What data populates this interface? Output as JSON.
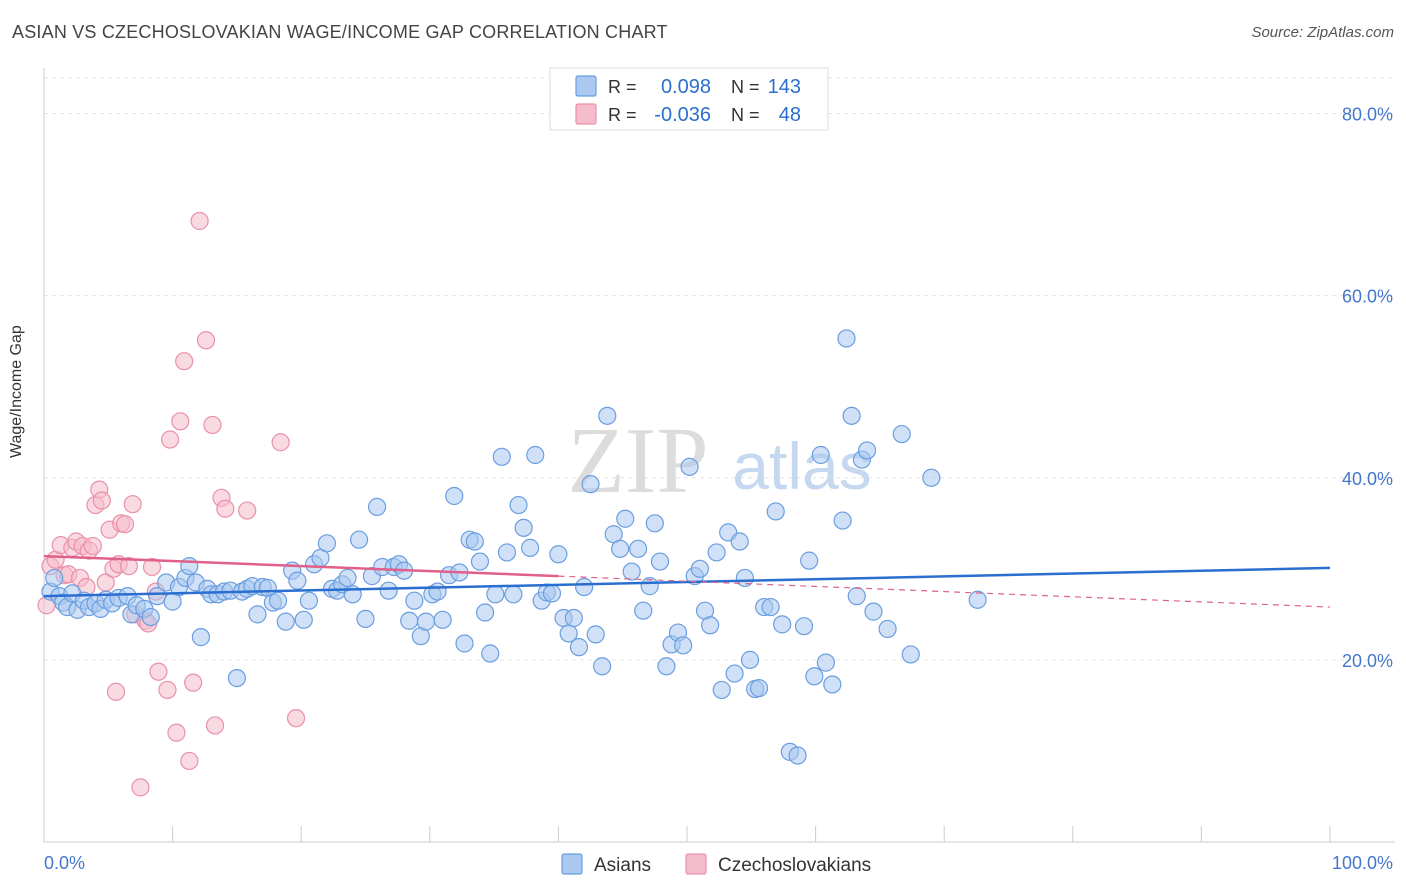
{
  "title": "ASIAN VS CZECHOSLOVAKIAN WAGE/INCOME GAP CORRELATION CHART",
  "source": "Source: ZipAtlas.com",
  "watermark": {
    "zip": "ZIP",
    "atlas": "atlas"
  },
  "chart_data": {
    "type": "scatter",
    "xlabel": "",
    "ylabel": "Wage/Income Gap",
    "xlim": [
      0,
      100
    ],
    "ylim": [
      0,
      85
    ],
    "x_tick_labels": [
      "0.0%",
      "100.0%"
    ],
    "y_ticks": [
      20,
      40,
      60,
      80
    ],
    "y_tick_labels": [
      "20.0%",
      "40.0%",
      "60.0%",
      "80.0%"
    ],
    "grid": true,
    "legend_placement": "top-center",
    "legend": [
      {
        "r_label": "R =",
        "r_value": "0.098",
        "n_label": "N =",
        "n_value": "143"
      },
      {
        "r_label": "R =",
        "r_value": "-0.036",
        "n_label": "N =",
        "n_value": "48"
      }
    ],
    "series": [
      {
        "name": "Asians",
        "color": "#6a9ee0",
        "fill": "#aac8f0",
        "trend": {
          "x": [
            0,
            100
          ],
          "y": [
            27.0,
            30.1
          ],
          "color": "#2a6fcf"
        },
        "points": [
          [
            0.5,
            27.5
          ],
          [
            0.8,
            29
          ],
          [
            1.2,
            27
          ],
          [
            1.5,
            26.3
          ],
          [
            1.8,
            25.8
          ],
          [
            2.2,
            27.3
          ],
          [
            2.6,
            25.5
          ],
          [
            3.1,
            26.5
          ],
          [
            3.5,
            25.8
          ],
          [
            4.0,
            26.2
          ],
          [
            4.4,
            25.6
          ],
          [
            4.8,
            26.6
          ],
          [
            5.3,
            26.2
          ],
          [
            5.8,
            26.8
          ],
          [
            6.5,
            27
          ],
          [
            6.8,
            25
          ],
          [
            7.2,
            26
          ],
          [
            7.8,
            25.6
          ],
          [
            8.3,
            24.7
          ],
          [
            8.8,
            27
          ],
          [
            9.5,
            28.5
          ],
          [
            10.0,
            26.4
          ],
          [
            10.5,
            28
          ],
          [
            11.0,
            29
          ],
          [
            11.3,
            30.3
          ],
          [
            11.8,
            28.5
          ],
          [
            12.2,
            22.5
          ],
          [
            12.7,
            27.8
          ],
          [
            13.0,
            27.2
          ],
          [
            13.5,
            27.2
          ],
          [
            14.0,
            27.5
          ],
          [
            14.5,
            27.6
          ],
          [
            15.0,
            18
          ],
          [
            15.4,
            27.5
          ],
          [
            15.8,
            27.8
          ],
          [
            16.2,
            28.1
          ],
          [
            16.6,
            25
          ],
          [
            17.0,
            28
          ],
          [
            17.4,
            27.9
          ],
          [
            17.8,
            26.3
          ],
          [
            18.2,
            26.5
          ],
          [
            18.8,
            24.2
          ],
          [
            19.3,
            29.8
          ],
          [
            19.7,
            28.7
          ],
          [
            20.2,
            24.4
          ],
          [
            20.6,
            26.5
          ],
          [
            21.0,
            30.5
          ],
          [
            21.5,
            31.2
          ],
          [
            22.0,
            32.8
          ],
          [
            22.4,
            27.8
          ],
          [
            22.8,
            27.6
          ],
          [
            23.2,
            28.3
          ],
          [
            23.6,
            29
          ],
          [
            24.0,
            27.2
          ],
          [
            24.5,
            33.2
          ],
          [
            25.0,
            24.5
          ],
          [
            25.5,
            29.2
          ],
          [
            25.9,
            36.8
          ],
          [
            26.3,
            30.2
          ],
          [
            26.8,
            27.6
          ],
          [
            27.2,
            30.2
          ],
          [
            27.6,
            30.5
          ],
          [
            28.0,
            29.8
          ],
          [
            28.4,
            24.3
          ],
          [
            28.8,
            26.5
          ],
          [
            29.3,
            22.6
          ],
          [
            29.7,
            24.2
          ],
          [
            30.2,
            27.2
          ],
          [
            30.6,
            27.5
          ],
          [
            31.0,
            24.4
          ],
          [
            31.5,
            29.3
          ],
          [
            31.9,
            38.0
          ],
          [
            32.3,
            29.6
          ],
          [
            32.7,
            21.8
          ],
          [
            33.1,
            33.2
          ],
          [
            33.5,
            33
          ],
          [
            33.9,
            30.8
          ],
          [
            34.3,
            25.2
          ],
          [
            34.7,
            20.7
          ],
          [
            35.1,
            27.2
          ],
          [
            35.6,
            42.3
          ],
          [
            36.0,
            31.8
          ],
          [
            36.5,
            27.2
          ],
          [
            36.9,
            37.0
          ],
          [
            37.3,
            34.5
          ],
          [
            37.8,
            32.3
          ],
          [
            38.2,
            42.5
          ],
          [
            38.7,
            26.5
          ],
          [
            39.1,
            27.4
          ],
          [
            39.5,
            27.3
          ],
          [
            40.0,
            31.6
          ],
          [
            40.4,
            24.6
          ],
          [
            40.8,
            22.9
          ],
          [
            41.2,
            24.6
          ],
          [
            41.6,
            21.4
          ],
          [
            42.0,
            28
          ],
          [
            42.5,
            39.3
          ],
          [
            42.9,
            22.8
          ],
          [
            43.4,
            19.3
          ],
          [
            43.8,
            46.8
          ],
          [
            44.3,
            33.8
          ],
          [
            44.8,
            32.2
          ],
          [
            45.2,
            35.5
          ],
          [
            45.7,
            29.7
          ],
          [
            46.2,
            32.2
          ],
          [
            46.6,
            25.4
          ],
          [
            47.1,
            28.1
          ],
          [
            47.5,
            35.0
          ],
          [
            47.9,
            30.8
          ],
          [
            48.4,
            19.3
          ],
          [
            48.8,
            21.7
          ],
          [
            49.3,
            23
          ],
          [
            49.7,
            21.6
          ],
          [
            50.2,
            41.2
          ],
          [
            50.6,
            29.2
          ],
          [
            51.0,
            30
          ],
          [
            51.4,
            25.4
          ],
          [
            51.8,
            23.8
          ],
          [
            52.3,
            31.8
          ],
          [
            52.7,
            16.7
          ],
          [
            53.2,
            34
          ],
          [
            53.7,
            18.5
          ],
          [
            54.1,
            33.0
          ],
          [
            54.5,
            29
          ],
          [
            54.9,
            20
          ],
          [
            55.3,
            16.8
          ],
          [
            55.6,
            16.9
          ],
          [
            56.0,
            25.8
          ],
          [
            56.5,
            25.8
          ],
          [
            56.9,
            36.3
          ],
          [
            57.4,
            23.9
          ],
          [
            58.0,
            9.9
          ],
          [
            58.6,
            9.5
          ],
          [
            59.1,
            23.7
          ],
          [
            59.5,
            30.9
          ],
          [
            59.9,
            18.2
          ],
          [
            60.4,
            42.5
          ],
          [
            60.8,
            19.7
          ],
          [
            61.3,
            17.3
          ],
          [
            62.1,
            35.3
          ],
          [
            62.4,
            55.3
          ],
          [
            62.8,
            46.8
          ],
          [
            63.2,
            27.0
          ],
          [
            63.6,
            42.0
          ],
          [
            64.0,
            43
          ],
          [
            64.5,
            25.3
          ],
          [
            65.6,
            23.4
          ],
          [
            66.7,
            44.8
          ],
          [
            67.4,
            20.6
          ],
          [
            69.0,
            40
          ],
          [
            72.6,
            26.6
          ]
        ]
      },
      {
        "name": "Czechoslovakians",
        "color": "#e990aa",
        "fill": "#f5bccb",
        "trend": {
          "x": [
            0,
            40
          ],
          "y": [
            31.4,
            29.2
          ],
          "color": "#e0608a"
        },
        "trend_dashed": {
          "x": [
            40,
            100
          ],
          "y": [
            29.2,
            25.8
          ]
        },
        "points": [
          [
            0.2,
            26
          ],
          [
            0.5,
            30.3
          ],
          [
            0.9,
            31
          ],
          [
            1.3,
            32.6
          ],
          [
            1.6,
            29.3
          ],
          [
            1.9,
            29.4
          ],
          [
            2.2,
            32.3
          ],
          [
            2.5,
            33
          ],
          [
            2.8,
            29
          ],
          [
            3.0,
            32.5
          ],
          [
            3.3,
            28
          ],
          [
            3.5,
            32
          ],
          [
            3.8,
            32.5
          ],
          [
            4.0,
            37
          ],
          [
            4.3,
            38.7
          ],
          [
            4.5,
            37.5
          ],
          [
            4.8,
            28.5
          ],
          [
            5.1,
            34.3
          ],
          [
            5.4,
            30
          ],
          [
            5.6,
            16.5
          ],
          [
            5.8,
            30.5
          ],
          [
            6.0,
            35
          ],
          [
            6.3,
            34.9
          ],
          [
            6.6,
            30.3
          ],
          [
            6.9,
            37.1
          ],
          [
            7.1,
            25
          ],
          [
            7.5,
            6
          ],
          [
            7.9,
            24.3
          ],
          [
            8.1,
            24
          ],
          [
            8.4,
            30.2
          ],
          [
            8.7,
            27.5
          ],
          [
            8.9,
            18.7
          ],
          [
            9.6,
            16.7
          ],
          [
            9.8,
            44.2
          ],
          [
            10.3,
            12
          ],
          [
            10.6,
            46.2
          ],
          [
            10.9,
            52.8
          ],
          [
            11.3,
            8.9
          ],
          [
            11.6,
            17.5
          ],
          [
            12.1,
            68.2
          ],
          [
            12.6,
            55.1
          ],
          [
            13.1,
            45.8
          ],
          [
            13.3,
            12.8
          ],
          [
            13.8,
            37.8
          ],
          [
            14.1,
            36.6
          ],
          [
            15.8,
            36.4
          ],
          [
            18.4,
            43.9
          ],
          [
            19.6,
            13.6
          ]
        ]
      }
    ]
  }
}
